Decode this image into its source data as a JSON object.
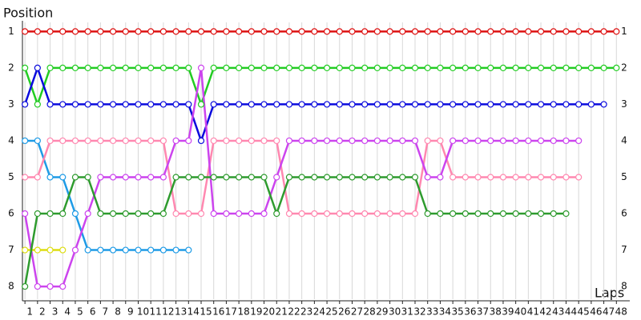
{
  "chart_data": {
    "type": "line",
    "y_title": "Position",
    "x_title": "Laps",
    "x": [
      1,
      2,
      3,
      4,
      5,
      6,
      7,
      8,
      9,
      10,
      11,
      12,
      13,
      14,
      15,
      16,
      17,
      18,
      19,
      20,
      21,
      22,
      23,
      24,
      25,
      26,
      27,
      28,
      29,
      30,
      31,
      32,
      33,
      34,
      35,
      36,
      37,
      38,
      39,
      40,
      41,
      42,
      43,
      44,
      45,
      46,
      47,
      48
    ],
    "xlim": [
      0.8,
      49
    ],
    "xticks": [
      1,
      2,
      3,
      4,
      5,
      6,
      7,
      8,
      9,
      10,
      11,
      12,
      13,
      14,
      15,
      16,
      17,
      18,
      19,
      20,
      21,
      22,
      23,
      24,
      25,
      26,
      27,
      28,
      29,
      30,
      31,
      32,
      33,
      34,
      35,
      36,
      37,
      38,
      39,
      40,
      41,
      42,
      43,
      44,
      45,
      46,
      47,
      48
    ],
    "ylim": [
      8.35,
      0.75
    ],
    "yticks": [
      1,
      2,
      3,
      4,
      5,
      6,
      7,
      8
    ],
    "grid": true,
    "series": [
      {
        "color": "#dd1111",
        "values": [
          1,
          1,
          1,
          1,
          1,
          1,
          1,
          1,
          1,
          1,
          1,
          1,
          1,
          1,
          1,
          1,
          1,
          1,
          1,
          1,
          1,
          1,
          1,
          1,
          1,
          1,
          1,
          1,
          1,
          1,
          1,
          1,
          1,
          1,
          1,
          1,
          1,
          1,
          1,
          1,
          1,
          1,
          1,
          1,
          1,
          1,
          1,
          1
        ]
      },
      {
        "color": "#22cc22",
        "values": [
          2,
          3,
          2,
          2,
          2,
          2,
          2,
          2,
          2,
          2,
          2,
          2,
          2,
          2,
          3,
          2,
          2,
          2,
          2,
          2,
          2,
          2,
          2,
          2,
          2,
          2,
          2,
          2,
          2,
          2,
          2,
          2,
          2,
          2,
          2,
          2,
          2,
          2,
          2,
          2,
          2,
          2,
          2,
          2,
          2,
          2,
          2,
          2
        ]
      },
      {
        "color": "#0a0add",
        "values": [
          3,
          2,
          3,
          3,
          3,
          3,
          3,
          3,
          3,
          3,
          3,
          3,
          3,
          3,
          4,
          3,
          3,
          3,
          3,
          3,
          3,
          3,
          3,
          3,
          3,
          3,
          3,
          3,
          3,
          3,
          3,
          3,
          3,
          3,
          3,
          3,
          3,
          3,
          3,
          3,
          3,
          3,
          3,
          3,
          3,
          3,
          3,
          null
        ]
      },
      {
        "color": "#1e9be6",
        "values": [
          4,
          4,
          5,
          5,
          6,
          7,
          7,
          7,
          7,
          7,
          7,
          7,
          7,
          7,
          null,
          null,
          null,
          null,
          null,
          null,
          null,
          null,
          null,
          null,
          null,
          null,
          null,
          null,
          null,
          null,
          null,
          null,
          null,
          null,
          null,
          null,
          null,
          null,
          null,
          null,
          null,
          null,
          null,
          null,
          null,
          null,
          null,
          null
        ]
      },
      {
        "color": "#ff88b0",
        "values": [
          5,
          5,
          4,
          4,
          4,
          4,
          4,
          4,
          4,
          4,
          4,
          4,
          6,
          6,
          6,
          4,
          4,
          4,
          4,
          4,
          4,
          6,
          6,
          6,
          6,
          6,
          6,
          6,
          6,
          6,
          6,
          6,
          4,
          4,
          5,
          5,
          5,
          5,
          5,
          5,
          5,
          5,
          5,
          5,
          5,
          null,
          null,
          null
        ]
      },
      {
        "color": "#cc44ee",
        "values": [
          6,
          8,
          8,
          8,
          7,
          6,
          5,
          5,
          5,
          5,
          5,
          5,
          4,
          4,
          2,
          6,
          6,
          6,
          6,
          6,
          5,
          4,
          4,
          4,
          4,
          4,
          4,
          4,
          4,
          4,
          4,
          4,
          5,
          5,
          4,
          4,
          4,
          4,
          4,
          4,
          4,
          4,
          4,
          4,
          4,
          null,
          null,
          null
        ]
      },
      {
        "color": "#dddd11",
        "values": [
          7,
          7,
          7,
          7,
          null,
          null,
          null,
          null,
          null,
          null,
          null,
          null,
          null,
          null,
          null,
          null,
          null,
          null,
          null,
          null,
          null,
          null,
          null,
          null,
          null,
          null,
          null,
          null,
          null,
          null,
          null,
          null,
          null,
          null,
          null,
          null,
          null,
          null,
          null,
          null,
          null,
          null,
          null,
          null,
          null,
          null,
          null,
          null
        ]
      },
      {
        "color": "#2e9b2e",
        "values": [
          8,
          6,
          6,
          6,
          5,
          5,
          6,
          6,
          6,
          6,
          6,
          6,
          5,
          5,
          5,
          5,
          5,
          5,
          5,
          5,
          6,
          5,
          5,
          5,
          5,
          5,
          5,
          5,
          5,
          5,
          5,
          5,
          6,
          6,
          6,
          6,
          6,
          6,
          6,
          6,
          6,
          6,
          6,
          6,
          null,
          null,
          null,
          null
        ]
      }
    ]
  }
}
